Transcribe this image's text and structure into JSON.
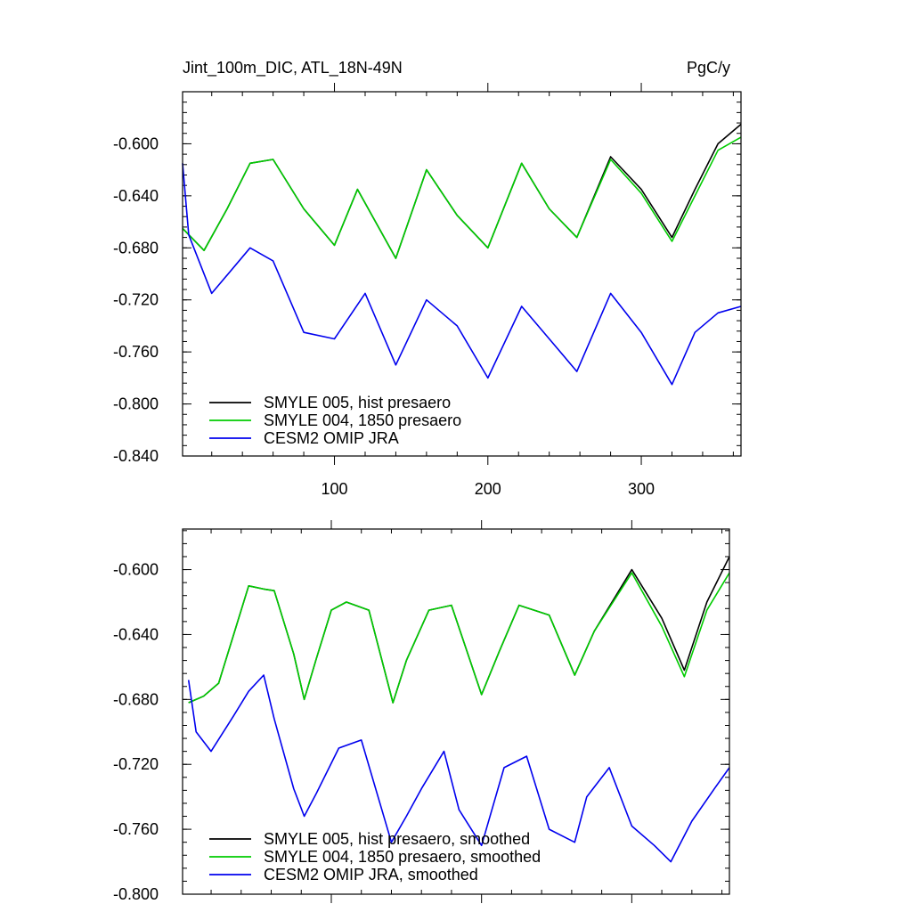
{
  "chart_data": [
    {
      "type": "line",
      "title": "Jint_100m_DIC, ATL_18N-49N",
      "units": "PgC/y",
      "xlabel": "",
      "ylabel": "",
      "xlim": [
        1,
        365
      ],
      "ylim": [
        -0.84,
        -0.56
      ],
      "xticks": [
        100,
        200,
        300
      ],
      "yticks": [
        -0.84,
        -0.8,
        -0.76,
        -0.72,
        -0.68,
        -0.64,
        -0.6
      ],
      "ytick_labels": [
        "-0.840",
        "-0.800",
        "-0.760",
        "-0.720",
        "-0.680",
        "-0.640",
        "-0.600"
      ],
      "grid": false,
      "legend_position": "bottom-left",
      "series": [
        {
          "name": "SMYLE 005, hist presaero",
          "color": "#000000",
          "x": [
            1,
            15,
            30,
            45,
            60,
            80,
            100,
            115,
            140,
            160,
            180,
            200,
            222,
            240,
            258,
            280,
            300,
            320,
            335,
            350,
            365
          ],
          "values": [
            -0.665,
            -0.682,
            -0.65,
            -0.615,
            -0.612,
            -0.65,
            -0.678,
            -0.635,
            -0.688,
            -0.62,
            -0.655,
            -0.68,
            -0.615,
            -0.65,
            -0.672,
            -0.61,
            -0.635,
            -0.672,
            -0.635,
            -0.6,
            -0.585
          ]
        },
        {
          "name": "SMYLE 004, 1850 presaero",
          "color": "#00cc00",
          "x": [
            1,
            15,
            30,
            45,
            60,
            80,
            100,
            115,
            140,
            160,
            180,
            200,
            222,
            240,
            258,
            280,
            300,
            320,
            335,
            350,
            365
          ],
          "values": [
            -0.665,
            -0.682,
            -0.65,
            -0.615,
            -0.612,
            -0.65,
            -0.678,
            -0.635,
            -0.688,
            -0.62,
            -0.655,
            -0.68,
            -0.615,
            -0.65,
            -0.672,
            -0.612,
            -0.638,
            -0.675,
            -0.64,
            -0.605,
            -0.595
          ]
        },
        {
          "name": "CESM2 OMIP JRA",
          "color": "#0000ee",
          "x": [
            1,
            5,
            20,
            45,
            60,
            80,
            100,
            120,
            140,
            160,
            180,
            200,
            222,
            240,
            258,
            280,
            300,
            320,
            335,
            350,
            365
          ],
          "values": [
            -0.615,
            -0.67,
            -0.715,
            -0.68,
            -0.69,
            -0.745,
            -0.75,
            -0.715,
            -0.77,
            -0.72,
            -0.74,
            -0.78,
            -0.725,
            -0.75,
            -0.775,
            -0.715,
            -0.745,
            -0.785,
            -0.745,
            -0.73,
            -0.725
          ]
        }
      ]
    },
    {
      "type": "line",
      "xlabel": "",
      "ylabel": "",
      "xlim": [
        1,
        365
      ],
      "ylim": [
        -0.8,
        -0.575
      ],
      "xticks": [
        100,
        200,
        300
      ],
      "yticks": [
        -0.8,
        -0.76,
        -0.72,
        -0.68,
        -0.64,
        -0.6
      ],
      "ytick_labels": [
        "-0.800",
        "-0.760",
        "-0.720",
        "-0.680",
        "-0.640",
        "-0.600"
      ],
      "grid": false,
      "legend_position": "bottom-left",
      "series": [
        {
          "name": "SMYLE 005, hist presaero, smoothed",
          "color": "#000000",
          "x": [
            5,
            15,
            25,
            35,
            45,
            55,
            62,
            75,
            82,
            90,
            100,
            110,
            125,
            141,
            150,
            165,
            180,
            200,
            212,
            225,
            245,
            262,
            275,
            300,
            320,
            335,
            350,
            365
          ],
          "values": [
            -0.682,
            -0.678,
            -0.67,
            -0.64,
            -0.61,
            -0.612,
            -0.613,
            -0.652,
            -0.68,
            -0.655,
            -0.625,
            -0.62,
            -0.625,
            -0.682,
            -0.656,
            -0.625,
            -0.622,
            -0.677,
            -0.65,
            -0.622,
            -0.628,
            -0.665,
            -0.638,
            -0.6,
            -0.63,
            -0.662,
            -0.62,
            -0.592
          ]
        },
        {
          "name": "SMYLE 004, 1850 presaero, smoothed",
          "color": "#00cc00",
          "x": [
            5,
            15,
            25,
            35,
            45,
            55,
            62,
            75,
            82,
            90,
            100,
            110,
            125,
            141,
            150,
            165,
            180,
            200,
            212,
            225,
            245,
            262,
            275,
            300,
            320,
            335,
            350,
            365
          ],
          "values": [
            -0.682,
            -0.678,
            -0.67,
            -0.64,
            -0.61,
            -0.612,
            -0.613,
            -0.652,
            -0.68,
            -0.655,
            -0.625,
            -0.62,
            -0.625,
            -0.682,
            -0.656,
            -0.625,
            -0.622,
            -0.677,
            -0.65,
            -0.622,
            -0.628,
            -0.665,
            -0.638,
            -0.602,
            -0.635,
            -0.666,
            -0.625,
            -0.602
          ]
        },
        {
          "name": "CESM2 OMIP JRA, smoothed",
          "color": "#0000ee",
          "x": [
            5,
            10,
            20,
            35,
            45,
            55,
            62,
            75,
            82,
            90,
            105,
            120,
            140,
            150,
            160,
            175,
            185,
            200,
            215,
            230,
            245,
            262,
            270,
            285,
            300,
            315,
            326,
            340,
            355,
            365
          ],
          "values": [
            -0.668,
            -0.7,
            -0.712,
            -0.69,
            -0.675,
            -0.665,
            -0.692,
            -0.735,
            -0.752,
            -0.738,
            -0.71,
            -0.705,
            -0.768,
            -0.752,
            -0.735,
            -0.712,
            -0.748,
            -0.77,
            -0.722,
            -0.715,
            -0.76,
            -0.768,
            -0.74,
            -0.722,
            -0.758,
            -0.77,
            -0.78,
            -0.755,
            -0.735,
            -0.722
          ]
        }
      ]
    }
  ]
}
